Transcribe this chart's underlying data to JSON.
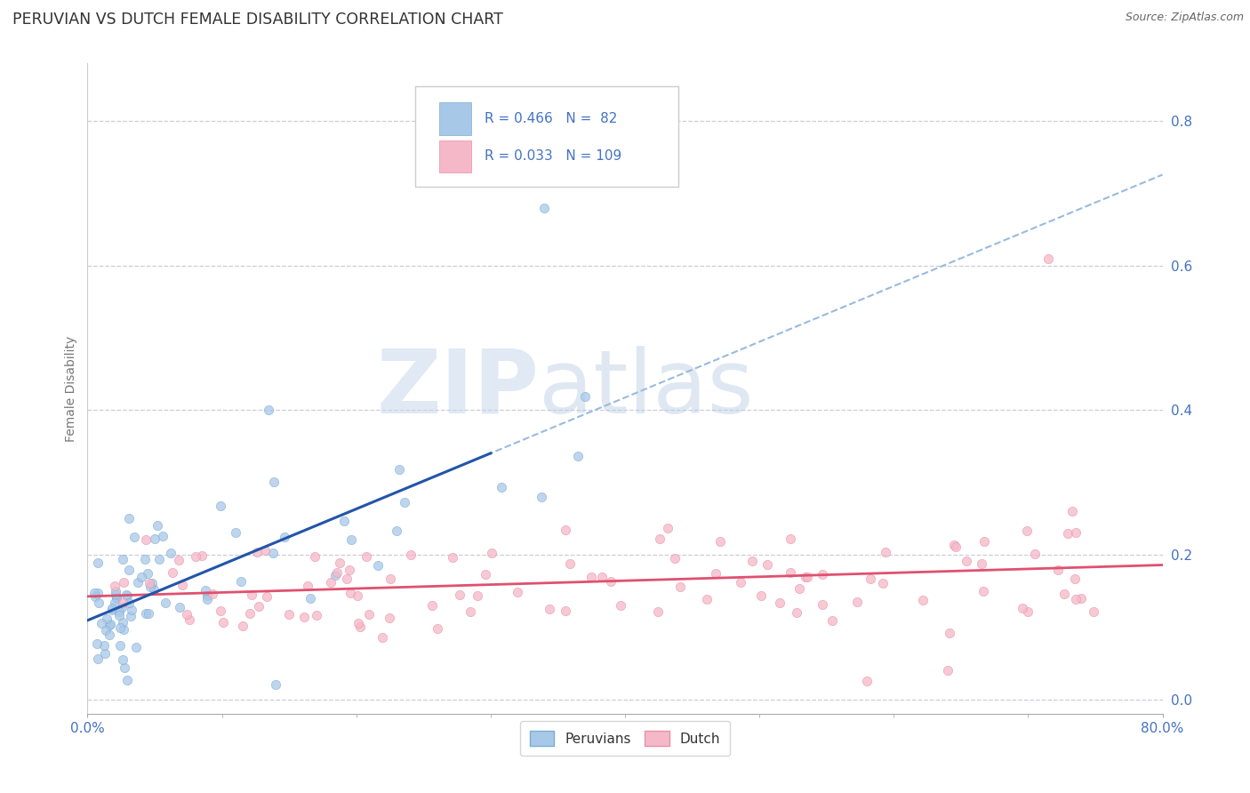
{
  "title": "PERUVIAN VS DUTCH FEMALE DISABILITY CORRELATION CHART",
  "source": "Source: ZipAtlas.com",
  "ylabel": "Female Disability",
  "xlim": [
    0.0,
    0.8
  ],
  "ylim": [
    -0.02,
    0.88
  ],
  "ytick_values": [
    0.0,
    0.2,
    0.4,
    0.6,
    0.8
  ],
  "peruvian_color": "#a8c8e8",
  "peruvian_edge": "#7aadd4",
  "dutch_color": "#f5b8c8",
  "dutch_edge": "#e890a8",
  "peruvian_line_color": "#2255aa",
  "dutch_line_color": "#e05070",
  "dashed_line_color": "#99bbdd",
  "watermark_zip": "ZIP",
  "watermark_atlas": "atlas",
  "background_color": "#ffffff",
  "grid_color": "#ccccdd",
  "tick_color": "#4472c4",
  "title_color": "#333333",
  "source_color": "#666666"
}
